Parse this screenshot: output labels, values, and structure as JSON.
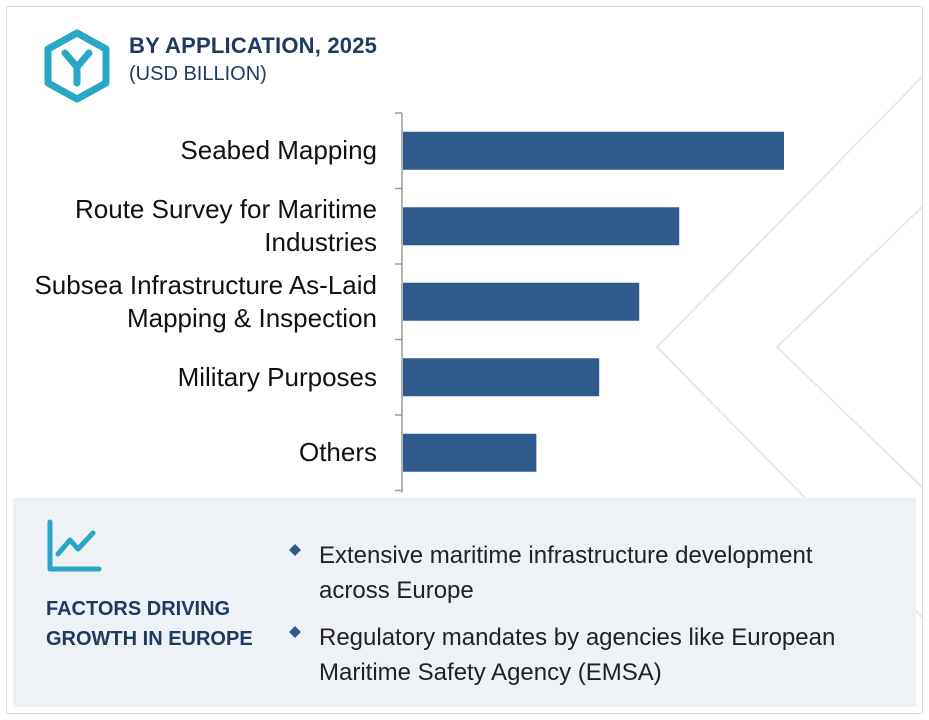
{
  "header": {
    "title": "BY APPLICATION, 2025",
    "subtitle": "(USD BILLION)",
    "logo_icon": "hexagon-y-logo-icon"
  },
  "chart_data": {
    "type": "bar",
    "orientation": "horizontal",
    "title": "BY APPLICATION, 2025",
    "subtitle": "(USD BILLION)",
    "categories": [
      "Seabed Mapping",
      "Route Survey for Maritime Industries",
      "Subsea Infrastructure As-Laid Mapping & Inspection",
      "Military Purposes",
      "Others"
    ],
    "category_lines": [
      [
        "Seabed Mapping"
      ],
      [
        "Route Survey for Maritime",
        "Industries"
      ],
      [
        "Subsea Infrastructure As-Laid",
        "Mapping & Inspection"
      ],
      [
        "Military Purposes"
      ],
      [
        "Others"
      ]
    ],
    "values": [
      100,
      72.5,
      62,
      51.5,
      35
    ],
    "xlim": [
      0,
      100
    ],
    "value_axis_shown": false,
    "grid": false,
    "legend": "none",
    "bar_color": "#2e5b8c"
  },
  "panel": {
    "heading": "FACTORS DRIVING GROWTH IN EUROPE",
    "icon": "line-chart-icon",
    "bullets": [
      "Extensive maritime infrastructure development across Europe",
      "Regulatory mandates by agencies like European Maritime Safety Agency (EMSA)"
    ]
  },
  "colors": {
    "accent": "#2aa7c7",
    "title": "#1f3a60",
    "bar": "#2e5b8c",
    "panel_bg": "#eef1f6",
    "bullet": "#2e5b8c"
  }
}
